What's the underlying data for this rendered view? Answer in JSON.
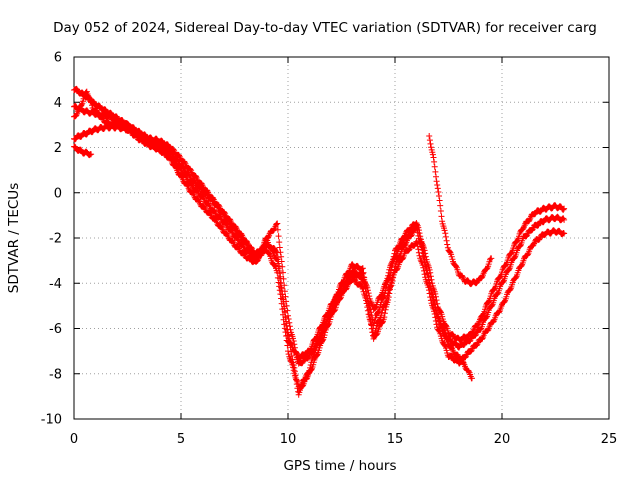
{
  "chart_data": {
    "type": "scatter",
    "title": "Day 052 of 2024, Sidereal Day-to-day VTEC variation (SDTVAR) for receiver carg",
    "xlabel": "GPS time / hours",
    "ylabel": "SDTVAR / TECUs",
    "xlim": [
      0,
      25
    ],
    "ylim": [
      -10,
      6
    ],
    "xticks": [
      "0",
      "5",
      "10",
      "15",
      "20",
      "25"
    ],
    "yticks": [
      "6",
      "4",
      "2",
      "0",
      "-2",
      "-4",
      "-6",
      "-8",
      "-10"
    ],
    "grid": true,
    "marker": "plus",
    "color": "#ff0000",
    "series": [
      {
        "x": [
          0,
          0.5,
          1,
          1.5,
          2,
          2.5,
          3,
          3.5,
          4,
          4.5,
          5,
          5.5,
          6,
          6.5,
          7,
          7.5,
          8,
          8.5,
          9,
          9.5,
          10,
          10.5,
          11,
          11.5,
          12,
          12.5,
          13,
          13.5,
          14,
          14.5,
          15,
          15.5,
          16,
          16.5,
          17,
          17.5,
          18,
          18.5,
          19,
          19.5,
          20,
          20.5,
          21,
          21.5,
          22,
          22.5,
          22.9
        ],
        "y": [
          3.8,
          3.6,
          3.5,
          3.4,
          3.2,
          3.0,
          2.6,
          2.3,
          2.1,
          1.8,
          1.2,
          0.6,
          0.1,
          -0.4,
          -1.0,
          -1.6,
          -2.2,
          -2.7,
          -2.3,
          -2.6,
          -6.5,
          -7.3,
          -7.0,
          -6.0,
          -5.0,
          -4.2,
          -3.5,
          -3.8,
          -5.8,
          -4.5,
          -2.8,
          -2.0,
          -1.5,
          -3.5,
          -5.5,
          -6.5,
          -6.8,
          -6.5,
          -6.0,
          -5.0,
          -4.0,
          -3.0,
          -2.0,
          -1.5,
          -1.2,
          -1.1,
          -1.2
        ]
      },
      {
        "x": [
          0,
          0.5,
          1,
          1.5,
          2,
          2.5,
          3,
          3.5,
          4,
          4.5,
          5,
          5.5,
          6,
          6.5,
          7,
          7.5,
          8,
          8.5,
          9,
          9.5,
          10,
          10.5,
          11,
          11.5,
          12,
          12.5,
          13,
          13.5,
          14,
          14.5,
          15,
          15.5,
          16,
          16.5,
          17,
          17.5,
          18,
          18.5,
          19,
          19.5,
          20,
          20.5,
          21,
          21.5,
          22,
          22.5,
          22.9
        ],
        "y": [
          4.6,
          4.3,
          3.9,
          3.6,
          3.3,
          3.0,
          2.7,
          2.4,
          2.3,
          2.0,
          1.5,
          0.9,
          0.3,
          -0.3,
          -0.9,
          -1.5,
          -2.1,
          -2.9,
          -2.5,
          -3.5,
          -7.0,
          -8.6,
          -8.0,
          -6.8,
          -5.5,
          -4.5,
          -3.8,
          -4.2,
          -6.3,
          -5.0,
          -3.5,
          -2.6,
          -2.2,
          -4.0,
          -6.0,
          -7.2,
          -7.5,
          -7.0,
          -6.5,
          -5.8,
          -5.0,
          -4.0,
          -3.0,
          -2.2,
          -1.8,
          -1.7,
          -1.8
        ]
      },
      {
        "x": [
          0,
          0.5,
          1,
          1.5,
          2,
          2.5,
          3,
          3.5,
          4,
          4.5,
          5,
          5.5,
          6,
          6.5,
          7,
          7.5,
          8,
          8.5,
          9,
          9.5,
          10,
          10.5,
          11,
          11.5,
          12,
          12.5,
          13,
          13.5,
          14,
          14.5,
          15,
          15.5,
          16,
          16.5,
          17,
          17.5,
          18,
          18.5,
          19,
          19.5,
          20,
          20.5,
          21,
          21.5,
          22,
          22.5,
          22.9
        ],
        "y": [
          2.4,
          2.6,
          2.8,
          2.9,
          2.9,
          2.8,
          2.6,
          2.2,
          1.9,
          1.6,
          1.0,
          0.3,
          -0.2,
          -0.8,
          -1.3,
          -1.9,
          -2.5,
          -3.0,
          -2.0,
          -1.4,
          -5.5,
          -7.6,
          -7.2,
          -6.5,
          -5.3,
          -4.4,
          -3.6,
          -3.6,
          -5.2,
          -4.2,
          -2.6,
          -1.8,
          -1.3,
          -3.0,
          -5.0,
          -6.2,
          -6.5,
          -6.3,
          -5.6,
          -4.5,
          -3.5,
          -2.5,
          -1.5,
          -0.9,
          -0.7,
          -0.6,
          -0.7
        ]
      },
      {
        "x": [
          0,
          0.3,
          0.6,
          0.9,
          1.2,
          1.5,
          2,
          2.5,
          3,
          3.5,
          4,
          4.5,
          5,
          5.5,
          6,
          6.5,
          7,
          7.5,
          8,
          8.5,
          9,
          9.5,
          10,
          10.5,
          11,
          11.5,
          12,
          12.5,
          13,
          13.5,
          14,
          14.5,
          15,
          15.5,
          16
        ],
        "y": [
          3.3,
          3.8,
          4.5,
          3.7,
          3.4,
          3.1,
          3.0,
          2.8,
          2.4,
          2.1,
          1.9,
          1.5,
          0.7,
          0.0,
          -0.6,
          -1.1,
          -1.7,
          -2.3,
          -2.8,
          -3.1,
          -2.1,
          -3.0,
          -6.2,
          -8.9,
          -7.8,
          -6.3,
          -5.2,
          -4.0,
          -3.2,
          -3.4,
          -6.5,
          -5.5,
          -3.2,
          -2.2,
          -1.5
        ]
      },
      {
        "x": [
          0,
          0.2,
          0.4,
          0.6,
          0.8
        ],
        "y": [
          2.0,
          1.9,
          1.8,
          1.75,
          1.7
        ]
      },
      {
        "x": [
          16.6,
          16.8,
          17.0,
          17.2,
          17.5,
          17.8,
          18.0,
          18.3,
          18.6,
          18.9,
          19.2,
          19.5
        ],
        "y": [
          2.5,
          1.5,
          0.2,
          -1.2,
          -2.5,
          -3.2,
          -3.6,
          -3.9,
          -4.0,
          -3.9,
          -3.5,
          -2.9
        ]
      },
      {
        "x": [
          16.2,
          16.5,
          16.8,
          17.1,
          17.4,
          17.7,
          18.0,
          18.3,
          18.6
        ],
        "y": [
          -2.0,
          -3.5,
          -4.8,
          -5.8,
          -6.5,
          -7.0,
          -7.3,
          -7.7,
          -8.2
        ]
      }
    ]
  }
}
